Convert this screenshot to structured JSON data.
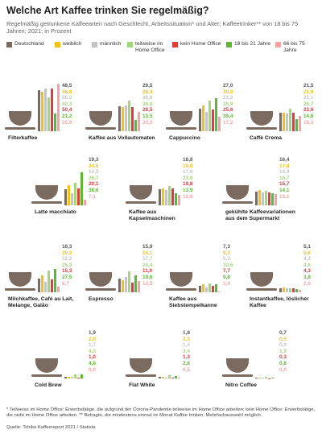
{
  "chart_data": {
    "type": "bar",
    "title": "Welche Art Kaffee trinken Sie regelmäßig?",
    "subtitle": "Regelmäßig getrunkene Kaffeearten nach Geschlecht, Arbeitssituation* und Alter; Kaffeetrinker** von 18 bis 75 Jahren; 2021; in Prozent",
    "categories": [
      "Filterkaffee",
      "Kaffee aus Vollautomaten",
      "Cappuccino",
      "Caffè Crema",
      "Latte macchiato",
      "Kaffee aus Kapselmaschinen",
      "gekühlte Kaffeevariationen aus dem Supermarkt",
      "Milchkaffee, Café au Lait, Melange, Galão",
      "Espresso",
      "Kaffee aus Siebstempelkanne",
      "Instantkaffee, löslicher Kaffee",
      "Cold Brew",
      "Flat White",
      "Nitro Coffee"
    ],
    "series": [
      {
        "name": "Deutschland",
        "color": "#7a6a60",
        "values": [
          48.5,
          29.5,
          27.0,
          21.5,
          19.3,
          18.8,
          16.4,
          16.3,
          15.9,
          7.3,
          5.1,
          1.9,
          1.8,
          0.7
        ],
        "value_labels": [
          "48,5",
          "29,5",
          "27,0",
          "21,5",
          "19,3",
          "18,8",
          "16,4",
          "16,3",
          "15,9",
          "7,3",
          "5,1",
          "1,9",
          "1,8",
          "0,7"
        ]
      },
      {
        "name": "weiblich",
        "color": "#f2c21b",
        "values": [
          46.8,
          28.4,
          30.8,
          21.9,
          24.0,
          19.8,
          17.8,
          20.3,
          14.1,
          9.3,
          5.8,
          2.0,
          2.3,
          0.5
        ],
        "value_labels": [
          "46,8",
          "28,4",
          "30,8",
          "21,9",
          "24,0",
          "19,8",
          "17,8",
          "20,3",
          "14,1",
          "9,3",
          "5,8",
          "2,0",
          "2,3",
          "0,5"
        ]
      },
      {
        "name": "männlich",
        "color": "#c4c4c4",
        "values": [
          50.2,
          30.6,
          23.2,
          21.1,
          14.5,
          17.8,
          14.9,
          12.2,
          17.7,
          5.3,
          4.3,
          1.7,
          1.4,
          0.9
        ],
        "value_labels": [
          "50,2",
          "30,6",
          "23,2",
          "21,1",
          "14,5",
          "17,8",
          "14,9",
          "12,2",
          "17,7",
          "5,3",
          "4,3",
          "1,7",
          "1,4",
          "0,9"
        ]
      },
      {
        "name": "teilweise im Home Office",
        "color": "#a5d67a",
        "values": [
          40.3,
          36.0,
          35.9,
          26.7,
          26.7,
          23.0,
          16.7,
          25.3,
          24.4,
          10.6,
          4.6,
          4.3,
          3.4,
          1.9
        ],
        "value_labels": [
          "40,3",
          "36,0",
          "35,9",
          "26,7",
          "26,7",
          "23,0",
          "16,7",
          "25,3",
          "24,4",
          "10,6",
          "4,6",
          "4,3",
          "3,4",
          "1,9"
        ]
      },
      {
        "name": "kein Home Office",
        "color": "#e03c3c",
        "values": [
          50.4,
          28.5,
          25.6,
          22.0,
          20.1,
          19.8,
          15.7,
          15.3,
          11.0,
          7.7,
          4.3,
          1.0,
          1.3,
          0.3
        ],
        "value_labels": [
          "50,4",
          "28,5",
          "25,6",
          "22,0",
          "20,1",
          "19,8",
          "15,7",
          "15,3",
          "11,0",
          "7,7",
          "4,3",
          "1,0",
          "1,3",
          "0,3"
        ]
      },
      {
        "name": "18 bis 21 Jahre",
        "color": "#5cb82e",
        "values": [
          21.2,
          13.5,
          39.4,
          14.6,
          38.6,
          13.9,
          14.1,
          27.5,
          19.6,
          9.8,
          3.8,
          4.8,
          2.8,
          0.8
        ],
        "value_labels": [
          "21,2",
          "13,5",
          "39,4",
          "14,6",
          "38,6",
          "13,9",
          "14,1",
          "27,5",
          "19,6",
          "9,8",
          "3,8",
          "4,8",
          "2,8",
          "0,8"
        ]
      },
      {
        "name": "66 bis 75 Jahre",
        "color": "#f2a3a3",
        "values": [
          55.9,
          23.3,
          17.2,
          18.3,
          7.1,
          12.8,
          13.1,
          6.7,
          13.5,
          1.4,
          2.8,
          0.0,
          0.5,
          0.0
        ],
        "value_labels": [
          "55,9",
          "23,3",
          "17,2",
          "18,3",
          "7,1",
          "12,8",
          "13,1",
          "6,7",
          "13,5",
          "1,4",
          "2,8",
          "0,0",
          "0,5",
          "0,0"
        ]
      }
    ],
    "footnote": "* Teilweise im Home Office: Erwerbstätige, die aufgrund der Corona-Pandemie teilweise im Home Office arbeiten; kein Home Office: Erwerbstätige, die nicht im Home Office arbeiten. ** Befragte, die mindestens einmal im Monat Kaffee trinken. Mehrfachauswahl möglich.",
    "source": "Quelle: Tchibo Kaffeereport 2021 / Statista"
  }
}
